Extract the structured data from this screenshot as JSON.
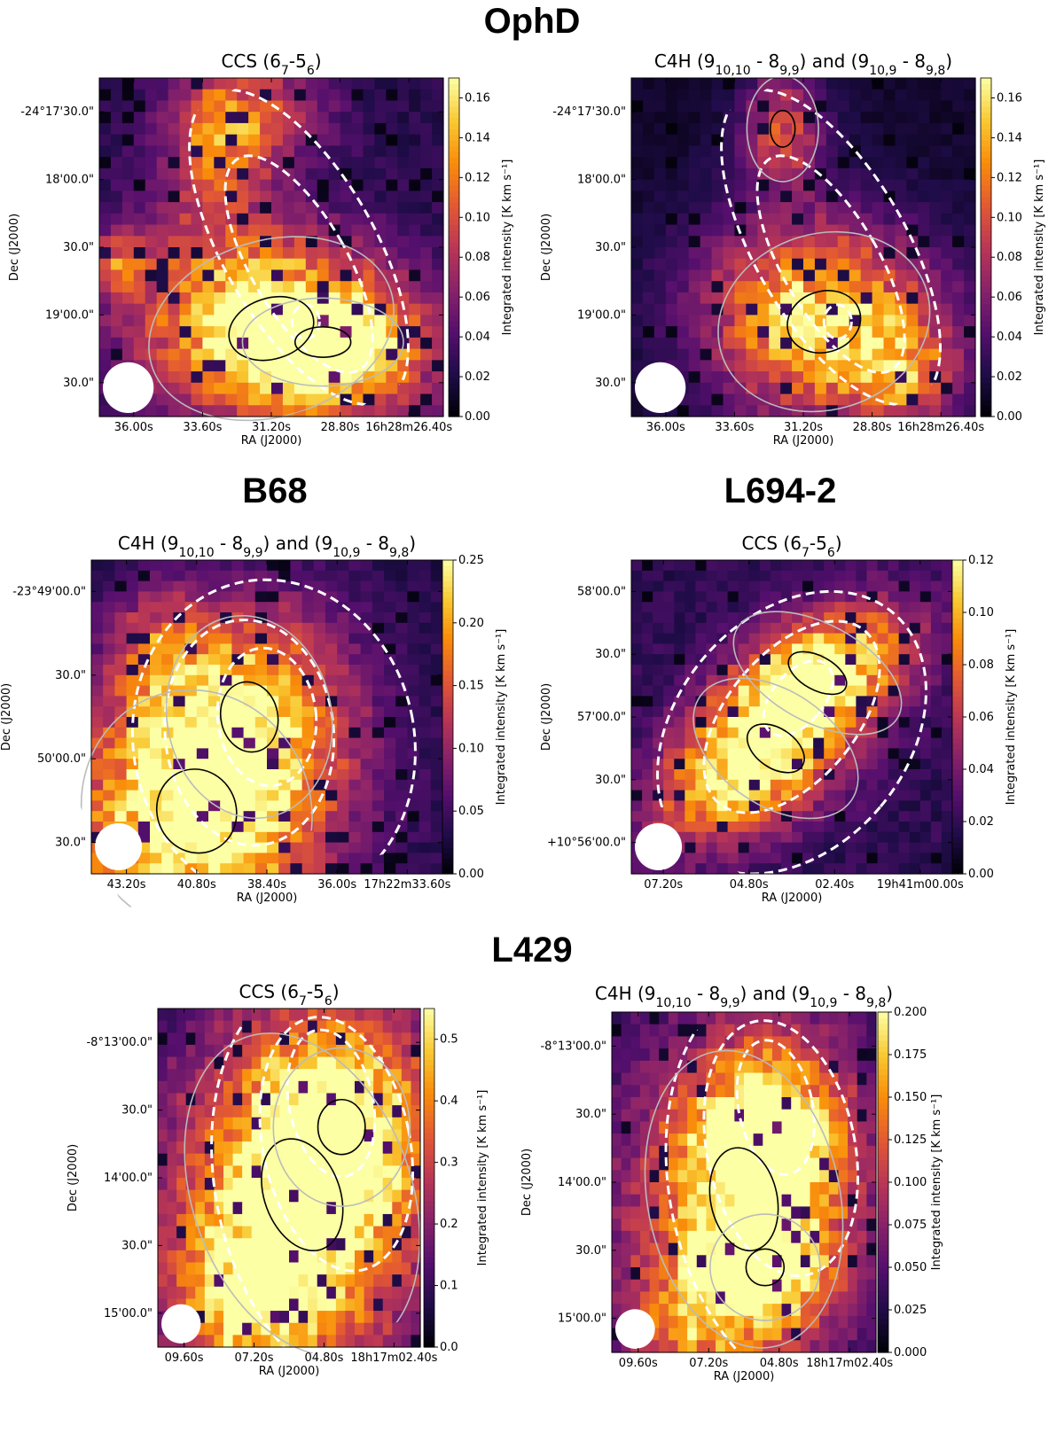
{
  "groups": [
    {
      "name": "OphD"
    },
    {
      "name": "B68"
    },
    {
      "name": "L694-2"
    },
    {
      "name": "L429"
    }
  ],
  "colorbar": {
    "colormap": "inferno",
    "label": "Integrated intensity [K km s$^{-1}$]"
  },
  "beam": {
    "color": "#ffffff"
  },
  "contour_colors": {
    "data": "#000000",
    "dust": "#ffffff"
  },
  "chart_data": [
    {
      "type": "heatmap",
      "source": "OphD",
      "title": "CCS (6_7-5_6)",
      "xlabel": "RA (J2000)",
      "ylabel": "Dec (J2000)",
      "xticks": [
        "36.00s",
        "33.60s",
        "31.20s",
        "28.80s",
        "16h28m26.40s"
      ],
      "yticks": [
        "-24°17'30.0\"",
        "18'00.0\"",
        "30.0\"",
        "19'00.0\"",
        "30.0\""
      ],
      "clim": [
        0.0,
        0.17
      ],
      "cbar_ticks": [
        "0.00",
        "0.02",
        "0.04",
        "0.06",
        "0.08",
        "0.10",
        "0.12",
        "0.14",
        "0.16"
      ],
      "cbar_label": "Integrated intensity [K km s⁻¹]",
      "contours": "black/grey: line intensity levels; white dashed: dust column density",
      "beam": "white circle, lower left"
    },
    {
      "type": "heatmap",
      "source": "OphD",
      "title": "C4H (9_{10,10} - 8_{9,9}) and (9_{10,9} - 8_{9,8})",
      "xlabel": "RA (J2000)",
      "ylabel": "Dec (J2000)",
      "xticks": [
        "36.00s",
        "33.60s",
        "31.20s",
        "28.80s",
        "16h28m26.40s"
      ],
      "yticks": [
        "-24°17'30.0\"",
        "18'00.0\"",
        "30.0\"",
        "19'00.0\"",
        "30.0\""
      ],
      "clim": [
        0.0,
        0.17
      ],
      "cbar_ticks": [
        "0.00",
        "0.02",
        "0.04",
        "0.06",
        "0.08",
        "0.10",
        "0.12",
        "0.14",
        "0.16"
      ],
      "cbar_label": "Integrated intensity [K km s⁻¹]",
      "contours": "black/grey: line intensity levels; white dashed: dust column density",
      "beam": "white circle, lower left"
    },
    {
      "type": "heatmap",
      "source": "B68",
      "title": "C4H (9_{10,10} - 8_{9,9}) and (9_{10,9} - 8_{9,8})",
      "xlabel": "RA (J2000)",
      "ylabel": "Dec (J2000)",
      "xticks": [
        "43.20s",
        "40.80s",
        "38.40s",
        "36.00s",
        "17h22m33.60s"
      ],
      "yticks": [
        "-23°49'00.0\"",
        "30.0\"",
        "50'00.0\"",
        "30.0\""
      ],
      "clim": [
        0.0,
        0.25
      ],
      "cbar_ticks": [
        "0.00",
        "0.05",
        "0.10",
        "0.15",
        "0.20",
        "0.25"
      ],
      "cbar_label": "Integrated intensity [K km s⁻¹]",
      "contours": "black/grey: line intensity levels; white dashed: dust column density",
      "beam": "white circle, lower left"
    },
    {
      "type": "heatmap",
      "source": "L694-2",
      "title": "CCS (6_7-5_6)",
      "xlabel": "RA (J2000)",
      "ylabel": "Dec (J2000)",
      "xticks": [
        "07.20s",
        "04.80s",
        "02.40s",
        "19h41m00.00s"
      ],
      "yticks": [
        "58'00.0\"",
        "30.0\"",
        "57'00.0\"",
        "30.0\"",
        "+10°56'00.0\""
      ],
      "clim": [
        0.0,
        0.12
      ],
      "cbar_ticks": [
        "0.00",
        "0.02",
        "0.04",
        "0.06",
        "0.08",
        "0.10",
        "0.12"
      ],
      "cbar_label": "Integrated intensity [K km s⁻¹]",
      "contours": "black/grey: line intensity levels; white dashed: dust column density",
      "beam": "white circle, lower left"
    },
    {
      "type": "heatmap",
      "source": "L429",
      "title": "CCS (6_7-5_6)",
      "xlabel": "RA (J2000)",
      "ylabel": "Dec (J2000)",
      "xticks": [
        "09.60s",
        "07.20s",
        "04.80s",
        "18h17m02.40s"
      ],
      "yticks": [
        "-8°13'00.0\"",
        "30.0\"",
        "14'00.0\"",
        "30.0\"",
        "15'00.0\""
      ],
      "clim": [
        0.0,
        0.55
      ],
      "cbar_ticks": [
        "0.0",
        "0.1",
        "0.2",
        "0.3",
        "0.4",
        "0.5"
      ],
      "cbar_label": "Integrated intensity [K km s⁻¹]",
      "contours": "black/grey: line intensity levels; white dashed: dust column density",
      "beam": "white circle, lower left"
    },
    {
      "type": "heatmap",
      "source": "L429",
      "title": "C4H (9_{10,10} - 8_{9,9}) and (9_{10,9} - 8_{9,8})",
      "xlabel": "RA (J2000)",
      "ylabel": "Dec (J2000)",
      "xticks": [
        "09.60s",
        "07.20s",
        "04.80s",
        "18h17m02.40s"
      ],
      "yticks": [
        "-8°13'00.0\"",
        "30.0\"",
        "14'00.0\"",
        "30.0\"",
        "15'00.0\""
      ],
      "clim": [
        0.0,
        0.2
      ],
      "cbar_ticks": [
        "0.000",
        "0.025",
        "0.050",
        "0.075",
        "0.100",
        "0.125",
        "0.150",
        "0.175",
        "0.200"
      ],
      "cbar_label": "Integrated intensity [K km s⁻¹]",
      "contours": "black/grey: line intensity levels; white dashed: dust column density",
      "beam": "white circle, lower left"
    }
  ]
}
